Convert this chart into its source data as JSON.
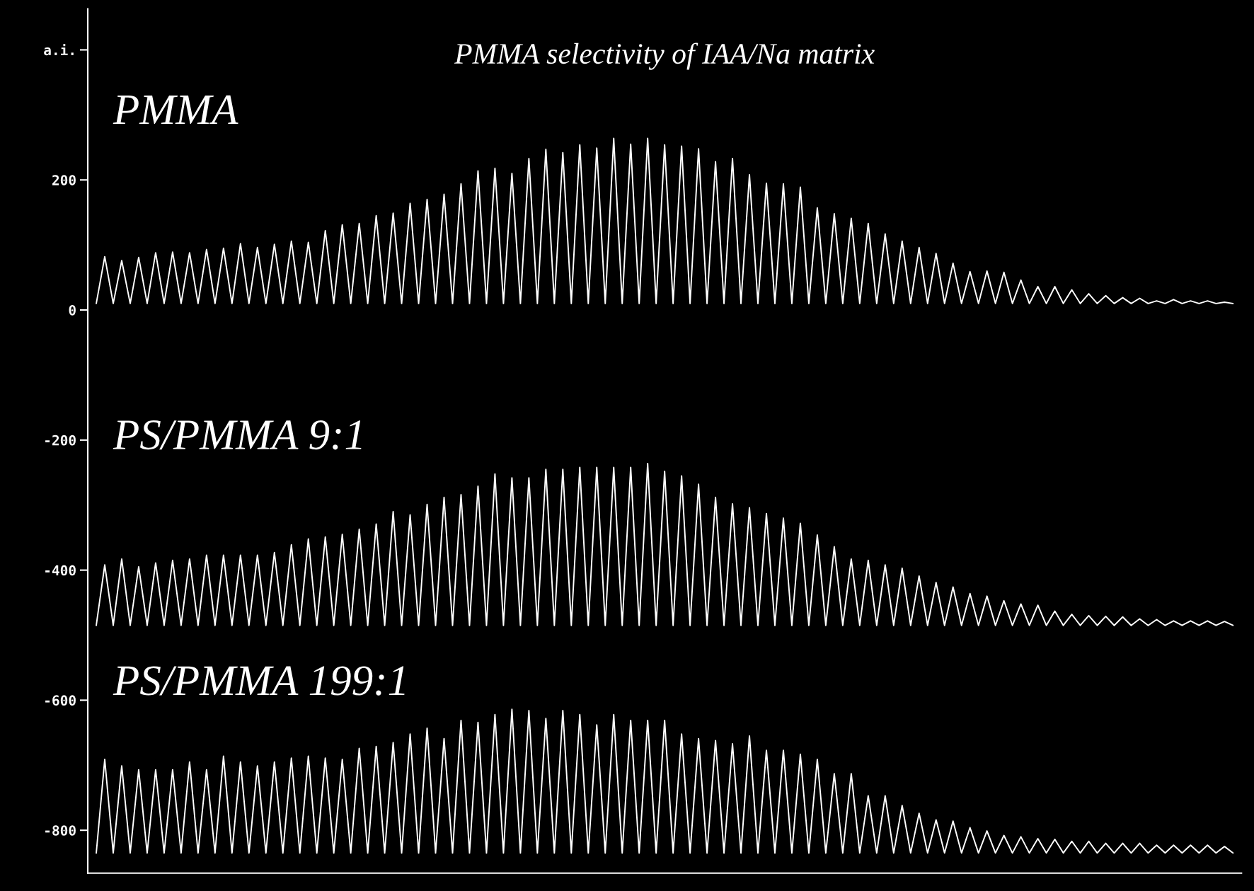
{
  "chart_data": {
    "type": "line",
    "title": "PMMA selectivity of IAA/Na matrix",
    "categories": [
      null,
      null,
      null,
      null,
      null,
      null,
      null,
      null,
      null,
      null,
      null,
      null,
      null,
      null,
      null,
      null,
      null,
      null,
      null,
      null,
      null,
      null,
      null,
      null,
      null,
      null,
      null,
      null,
      null,
      null,
      null,
      null,
      null,
      null,
      null,
      null,
      null,
      null,
      null,
      null,
      null,
      null,
      null,
      null,
      null,
      null,
      null,
      null,
      null,
      null,
      null,
      null,
      null,
      null,
      null,
      null,
      null,
      null,
      null,
      null,
      null,
      null,
      null,
      null,
      null,
      null,
      null,
      null,
      null,
      null,
      null,
      null,
      null,
      null,
      null,
      null,
      null,
      null,
      null,
      null,
      null,
      null,
      null,
      null,
      null,
      null,
      null,
      null,
      null,
      null,
      null,
      null,
      null,
      null,
      null,
      null,
      null,
      null,
      null,
      null,
      null,
      null,
      null,
      null,
      null,
      null,
      null,
      null,
      null,
      null,
      null,
      null,
      null,
      null,
      null,
      null,
      null,
      null,
      null,
      null,
      null,
      null,
      null,
      null,
      null,
      null,
      null,
      null,
      null,
      null,
      null,
      null,
      null,
      null,
      null
    ],
    "series": [
      {
        "name": "PMMA",
        "color": "#ffffff",
        "values": [
          10,
          82,
          10,
          76,
          10,
          81,
          10,
          88,
          10,
          89,
          10,
          88,
          10,
          93,
          10,
          95,
          10,
          102,
          10,
          96,
          10,
          101,
          10,
          106,
          10,
          104,
          10,
          122,
          10,
          131,
          10,
          133,
          10,
          145,
          10,
          149,
          10,
          164,
          10,
          170,
          10,
          178,
          10,
          194,
          10,
          214,
          10,
          218,
          10,
          210,
          10,
          233,
          10,
          247,
          10,
          242,
          10,
          254,
          10,
          249,
          10,
          264,
          10,
          255,
          10,
          264,
          10,
          254,
          10,
          252,
          10,
          248,
          10,
          228,
          10,
          233,
          10,
          208,
          10,
          195,
          10,
          194,
          10,
          189,
          10,
          157,
          10,
          148,
          10,
          141,
          10,
          133,
          10,
          117,
          10,
          106,
          10,
          96,
          10,
          87,
          10,
          72,
          10,
          59,
          10,
          60,
          10,
          58,
          10,
          46,
          10,
          36,
          10,
          36,
          10,
          31,
          10,
          25,
          10,
          22,
          10,
          19,
          10,
          18,
          10,
          14,
          10,
          16,
          10,
          14,
          10,
          14,
          10,
          12,
          10
        ]
      },
      {
        "name": "PS/PMMA 9:1",
        "color": "#ffffff",
        "values": [
          -485,
          -392,
          -485,
          -383,
          -485,
          -395,
          -485,
          -389,
          -485,
          -385,
          -485,
          -383,
          -485,
          -377,
          -485,
          -377,
          -485,
          -377,
          -485,
          -377,
          -485,
          -373,
          -485,
          -361,
          -485,
          -352,
          -485,
          -349,
          -485,
          -345,
          -485,
          -337,
          -485,
          -329,
          -485,
          -310,
          -485,
          -315,
          -485,
          -299,
          -485,
          -288,
          -485,
          -284,
          -485,
          -271,
          -485,
          -252,
          -485,
          -258,
          -485,
          -258,
          -485,
          -245,
          -485,
          -245,
          -485,
          -242,
          -485,
          -242,
          -485,
          -242,
          -485,
          -242,
          -485,
          -236,
          -485,
          -248,
          -485,
          -255,
          -485,
          -268,
          -485,
          -288,
          -485,
          -298,
          -485,
          -304,
          -485,
          -313,
          -485,
          -320,
          -485,
          -328,
          -485,
          -346,
          -485,
          -364,
          -485,
          -383,
          -485,
          -385,
          -485,
          -392,
          -485,
          -397,
          -485,
          -409,
          -485,
          -419,
          -485,
          -426,
          -485,
          -436,
          -485,
          -440,
          -485,
          -447,
          -485,
          -452,
          -485,
          -454,
          -485,
          -463,
          -485,
          -468,
          -485,
          -470,
          -485,
          -471,
          -485,
          -472,
          -485,
          -475,
          -485,
          -476,
          -485,
          -478,
          -485,
          -478,
          -485,
          -478,
          -485,
          -479,
          -485
        ]
      },
      {
        "name": "PS/PMMA 199:1",
        "color": "#ffffff",
        "values": [
          -835,
          -691,
          -835,
          -701,
          -835,
          -707,
          -835,
          -707,
          -835,
          -707,
          -835,
          -695,
          -835,
          -707,
          -835,
          -686,
          -835,
          -695,
          -835,
          -701,
          -835,
          -695,
          -835,
          -689,
          -835,
          -686,
          -835,
          -689,
          -835,
          -691,
          -835,
          -674,
          -835,
          -671,
          -835,
          -665,
          -835,
          -652,
          -835,
          -643,
          -835,
          -659,
          -835,
          -631,
          -835,
          -634,
          -835,
          -622,
          -835,
          -614,
          -835,
          -616,
          -835,
          -628,
          -835,
          -616,
          -835,
          -622,
          -835,
          -638,
          -835,
          -622,
          -835,
          -631,
          -835,
          -631,
          -835,
          -631,
          -835,
          -652,
          -835,
          -659,
          -835,
          -662,
          -835,
          -667,
          -835,
          -655,
          -835,
          -677,
          -835,
          -677,
          -835,
          -683,
          -835,
          -691,
          -835,
          -713,
          -835,
          -713,
          -835,
          -747,
          -835,
          -747,
          -835,
          -762,
          -835,
          -774,
          -835,
          -784,
          -835,
          -786,
          -835,
          -796,
          -835,
          -801,
          -835,
          -808,
          -835,
          -810,
          -835,
          -813,
          -835,
          -814,
          -835,
          -817,
          -835,
          -817,
          -835,
          -820,
          -835,
          -820,
          -835,
          -820,
          -835,
          -823,
          -835,
          -823,
          -835,
          -823,
          -835,
          -823,
          -835,
          -825,
          -835
        ]
      }
    ],
    "ylim": [
      -866,
      463
    ],
    "yticks": [
      -800,
      -600,
      -400,
      -200,
      0,
      200,
      {
        "value": 400,
        "label": "a.i."
      }
    ],
    "grid": false,
    "legend": false,
    "tick_labels": "y",
    "marker": "none",
    "line_style": "solid"
  }
}
